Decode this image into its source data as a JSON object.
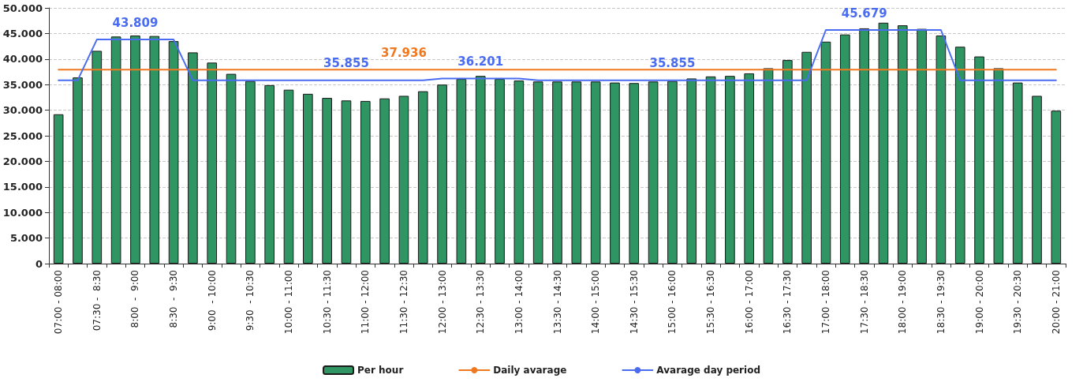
{
  "chart_data": {
    "type": "bar",
    "categories": [
      "07:00 - 08:00",
      null,
      "07:30 -  8:30",
      null,
      "8:00  -  9:00",
      null,
      "8:30  -  9:30",
      null,
      "9:00  - 10:00",
      null,
      "9:30  - 10:30",
      null,
      "10:00 - 11:00",
      null,
      "10:30 - 11:30",
      null,
      "11:00 - 12:00",
      null,
      "11:30 - 12:30",
      null,
      "12:00 - 13:00",
      null,
      "12:30 - 13:30",
      null,
      "13:00 - 14:00",
      null,
      "13:30 - 14:30",
      null,
      "14:00 - 15:00",
      null,
      "14:30 - 15:30",
      null,
      "15:00 - 16:00",
      null,
      "15:30 - 16:30",
      null,
      "16:00 - 17:00",
      null,
      "16:30 - 17:30",
      null,
      "17:00 - 18:00",
      null,
      "17:30 - 18:30",
      null,
      "18:00 - 19:00",
      null,
      "18:30 - 19:30",
      null,
      "19:00 - 20:00",
      null,
      "19:30 - 20:30",
      null,
      "20:00 - 21:00"
    ],
    "series": [
      {
        "name": "Per hour",
        "color": "#2e9563",
        "values": [
          29200,
          36400,
          41600,
          44400,
          44600,
          44500,
          43500,
          41300,
          39300,
          37100,
          35700,
          34900,
          34000,
          33200,
          32400,
          31900,
          31800,
          32300,
          32800,
          33700,
          35000,
          36100,
          36700,
          36100,
          35800,
          35600,
          35600,
          35600,
          35600,
          35400,
          35300,
          35600,
          35700,
          36200,
          36600,
          36700,
          37200,
          38200,
          39800,
          41400,
          43400,
          44800,
          46000,
          47100,
          46600,
          45900,
          44600,
          42400,
          40500,
          38200,
          35400,
          32800,
          29900
        ]
      },
      {
        "name": "Daily avarage",
        "type": "line",
        "color": "#f07820",
        "values": [
          37936,
          37936,
          37936,
          37936,
          37936,
          37936,
          37936,
          37936,
          37936,
          37936,
          37936,
          37936,
          37936,
          37936,
          37936,
          37936,
          37936,
          37936,
          37936,
          37936,
          37936,
          37936,
          37936,
          37936,
          37936,
          37936,
          37936,
          37936,
          37936,
          37936,
          37936,
          37936,
          37936,
          37936,
          37936,
          37936,
          37936,
          37936,
          37936,
          37936,
          37936,
          37936,
          37936,
          37936,
          37936,
          37936,
          37936,
          37936,
          37936,
          37936,
          37936,
          37936,
          37936
        ],
        "value_labels": [
          null,
          null,
          null,
          null,
          null,
          null,
          null,
          null,
          null,
          null,
          null,
          null,
          null,
          null,
          null,
          null,
          null,
          null,
          "37.936",
          null,
          null,
          null,
          null,
          null,
          null,
          null,
          null,
          null,
          null,
          null,
          null,
          null,
          null,
          null,
          null,
          null,
          null,
          null,
          null,
          null,
          null,
          null,
          null,
          null,
          null,
          null,
          null,
          null,
          null,
          null,
          null,
          null,
          null
        ]
      },
      {
        "name": "Avarage day period",
        "type": "line",
        "color": "#4a6cf0",
        "values": [
          35855,
          35855,
          43809,
          43809,
          43809,
          43809,
          43809,
          35855,
          35855,
          35855,
          35855,
          35855,
          35855,
          35855,
          35855,
          35855,
          35855,
          35855,
          35855,
          35855,
          36201,
          36201,
          36201,
          36201,
          36201,
          35855,
          35855,
          35855,
          35855,
          35855,
          35855,
          35855,
          35855,
          35855,
          35855,
          35855,
          35855,
          35855,
          35855,
          35855,
          45679,
          45679,
          45679,
          45679,
          45679,
          45679,
          45679,
          35855,
          35855,
          35855,
          35855,
          35855,
          35855
        ],
        "value_labels": [
          null,
          null,
          null,
          null,
          "43.809",
          null,
          null,
          null,
          null,
          null,
          null,
          null,
          null,
          null,
          null,
          "35.855",
          null,
          null,
          null,
          null,
          null,
          null,
          "36.201",
          null,
          null,
          null,
          null,
          null,
          null,
          null,
          null,
          null,
          "35.855",
          null,
          null,
          null,
          null,
          null,
          null,
          null,
          null,
          null,
          "45.679",
          null,
          null,
          null,
          null,
          null,
          null,
          null,
          null,
          null,
          null
        ]
      }
    ],
    "ylim": [
      0,
      50000
    ],
    "yticks": [
      {
        "value": 0,
        "label": "0"
      },
      {
        "value": 5000,
        "label": "5.000"
      },
      {
        "value": 10000,
        "label": "10.000"
      },
      {
        "value": 15000,
        "label": "15.000"
      },
      {
        "value": 20000,
        "label": "20.000"
      },
      {
        "value": 25000,
        "label": "25.000"
      },
      {
        "value": 30000,
        "label": "30.000"
      },
      {
        "value": 35000,
        "label": "35.000"
      },
      {
        "value": 40000,
        "label": "40.000"
      },
      {
        "value": 45000,
        "label": "45.000"
      },
      {
        "value": 50000,
        "label": "50.000"
      }
    ],
    "grid": "y",
    "legend": "bottom",
    "marker": "none",
    "line_style": "solid"
  }
}
